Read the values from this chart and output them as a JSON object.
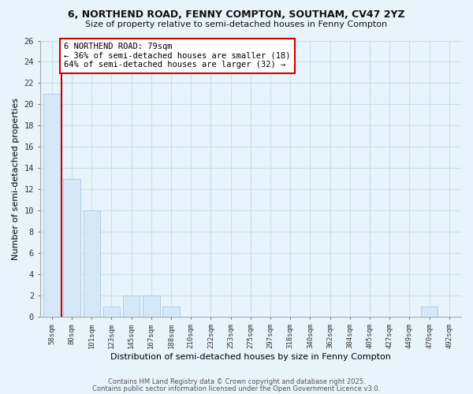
{
  "title1": "6, NORTHEND ROAD, FENNY COMPTON, SOUTHAM, CV47 2YZ",
  "title2": "Size of property relative to semi-detached houses in Fenny Compton",
  "xlabel": "Distribution of semi-detached houses by size in Fenny Compton",
  "ylabel": "Number of semi-detached properties",
  "categories": [
    "58sqm",
    "80sqm",
    "101sqm",
    "123sqm",
    "145sqm",
    "167sqm",
    "188sqm",
    "210sqm",
    "232sqm",
    "253sqm",
    "275sqm",
    "297sqm",
    "318sqm",
    "340sqm",
    "362sqm",
    "384sqm",
    "405sqm",
    "427sqm",
    "449sqm",
    "470sqm",
    "492sqm"
  ],
  "values": [
    21,
    13,
    10,
    1,
    2,
    2,
    1,
    0,
    0,
    0,
    0,
    0,
    0,
    0,
    0,
    0,
    0,
    0,
    0,
    1,
    0
  ],
  "bar_color": "#d6e8f7",
  "bar_edge_color": "#a8c8e8",
  "grid_color": "#c8dff0",
  "background_color": "#e8f4fb",
  "plot_bg_color": "#e8f4fb",
  "vline_color": "#cc0000",
  "annotation_text": "6 NORTHEND ROAD: 79sqm\n← 36% of semi-detached houses are smaller (18)\n64% of semi-detached houses are larger (32) →",
  "annotation_box_color": "#cc0000",
  "ylim": [
    0,
    26
  ],
  "yticks": [
    0,
    2,
    4,
    6,
    8,
    10,
    12,
    14,
    16,
    18,
    20,
    22,
    24,
    26
  ],
  "footer1": "Contains HM Land Registry data © Crown copyright and database right 2025.",
  "footer2": "Contains public sector information licensed under the Open Government Licence v3.0."
}
